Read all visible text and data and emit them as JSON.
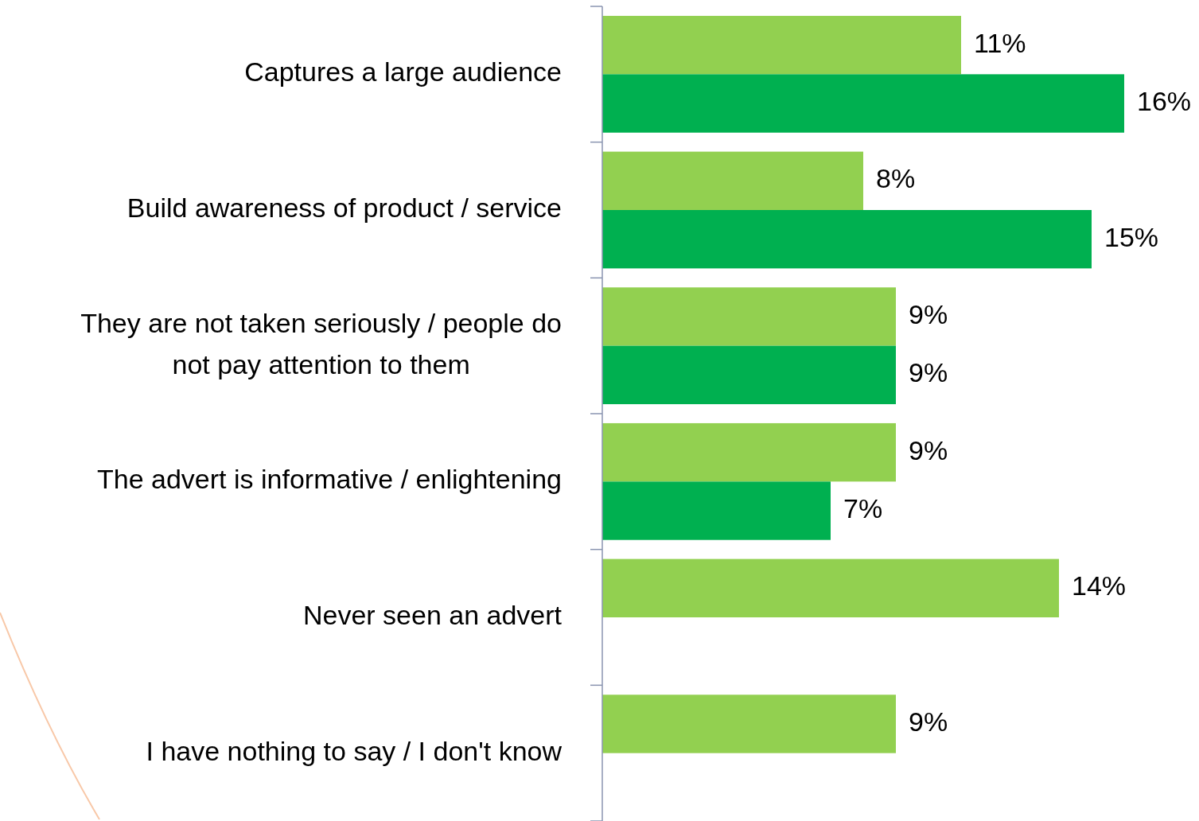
{
  "chart_data": {
    "type": "bar",
    "orientation": "horizontal",
    "categories": [
      "Captures a large audience",
      "Build awareness of product / service",
      "They are not taken seriously / people do not pay attention to them",
      "The advert is informative / enlightening",
      "Never seen an advert",
      "I have nothing to say / I don't know"
    ],
    "series": [
      {
        "color": "#92d050",
        "values": [
          11,
          8,
          9,
          9,
          14,
          9
        ],
        "value_labels": [
          "11%",
          "8%",
          "9%",
          "9%",
          "14%",
          "9%"
        ]
      },
      {
        "color": "#00b050",
        "values": [
          16,
          15,
          9,
          7,
          null,
          null
        ],
        "value_labels": [
          "16%",
          "15%",
          "9%",
          "7%",
          null,
          null
        ]
      }
    ],
    "grid": false
  }
}
